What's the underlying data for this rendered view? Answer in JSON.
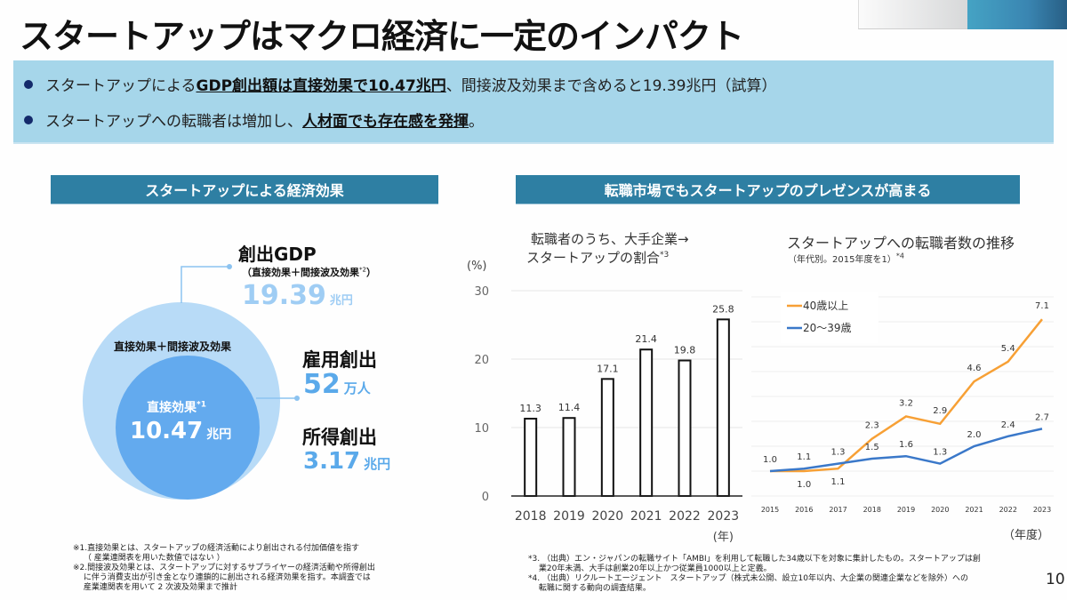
{
  "title": "スタートアップはマクロ経済に一定のインパクト",
  "summary": {
    "bullets": [
      {
        "pre": "スタートアップによる",
        "bold": "GDP創出額は直接効果で10.47兆円",
        "post": "、間接波及効果まで含めると19.39兆円（試算）"
      },
      {
        "pre": "スタートアップへの転職者は増加し、",
        "bold": "人材面でも存在感を発揮",
        "post": "。"
      }
    ]
  },
  "left_section": {
    "header": "スタートアップによる経済効果",
    "gdp": {
      "label": "創出GDP",
      "sublabel": "（直接効果＋間接波及効果",
      "sublabel_note": "*2",
      "sublabel_end": "）",
      "value": "19.39",
      "unit": "兆円"
    },
    "outer_circle_label": "直接効果＋間接波及効果",
    "inner_circle": {
      "label": "直接効果",
      "note": "*1",
      "value": "10.47",
      "unit": "兆円"
    },
    "employment": {
      "label": "雇用創出",
      "value": "52",
      "unit": "万人"
    },
    "income": {
      "label": "所得創出",
      "value": "3.17",
      "unit": "兆円"
    },
    "footnotes": [
      "※1.直接効果とは、スタートアップの経済活動により創出される付加価値を指す",
      "　 （ 産業連関表を用いた数値ではない ）",
      "※2.間接波及効果とは、スタートアップに対するサプライヤーの経済活動や所得創出",
      "　 に伴う消費支出が引き金となり連鎖的に創出される経済効果を指す。本調査では",
      "　 産業連関表を用いて 2 次波及効果まで推計"
    ]
  },
  "right_section": {
    "header": "転職市場でもスタートアップのプレゼンスが高まる",
    "footnotes": [
      "*3. （出典）エン・ジャパンの転職サイト「AMBI」を利用して転職した34歳以下を対象に集計したもの。スタートアップは創",
      "　 業20年未満、大手は創業20年以上かつ従業員1000以上と定義。",
      "*4. （出典）リクルートエージェント　スタートアップ（株式未公開、設立10年以内、大企業の関連企業などを除外）への",
      "　 転職に関する動向の調査結果。"
    ]
  },
  "page_number": "10",
  "colors": {
    "header_bg": "#2e7fa3",
    "info_bg": "#a6d6ea",
    "orange": "#f7a035",
    "blue": "#3a78c9",
    "outer_circle": "#b8dbf7",
    "inner_circle": "#63aaee"
  },
  "chart_data": [
    {
      "type": "bar",
      "title_line1": "転職者のうち、大手企業→",
      "title_line2": "スタートアップの割合",
      "title_note": "*3",
      "ylabel": "(%)",
      "xlabel": "(年)",
      "categories": [
        "2018",
        "2019",
        "2020",
        "2021",
        "2022",
        "2023"
      ],
      "values": [
        11.3,
        11.4,
        17.1,
        21.4,
        19.8,
        25.8
      ],
      "value_labels": [
        "11.3",
        "11.4",
        "17.1",
        "21.4",
        "19.8",
        "25.8"
      ],
      "ylim": [
        0,
        30
      ],
      "yticks": [
        "0",
        "10",
        "20",
        "30"
      ],
      "grid": true
    },
    {
      "type": "line",
      "title": "スタートアップへの転職者数の推移",
      "subtitle": "（年代別。2015年度を1）",
      "subtitle_note": "*4",
      "xlabel": "（年度）",
      "categories": [
        "2015",
        "2016",
        "2017",
        "2018",
        "2019",
        "2020",
        "2021",
        "2022",
        "2023"
      ],
      "ylim": [
        0,
        8
      ],
      "grid": true,
      "legend_position": "top-left",
      "series": [
        {
          "name": "40歳以上",
          "color": "#f7a035",
          "values": [
            1.0,
            1.0,
            1.1,
            2.3,
            3.2,
            2.9,
            4.6,
            5.4,
            7.1
          ],
          "labels": [
            "",
            "1.0",
            "1.1",
            "2.3",
            "3.2",
            "2.9",
            "4.6",
            "5.4",
            "7.1"
          ]
        },
        {
          "name": "20〜39歳",
          "color": "#3a78c9",
          "values": [
            1.0,
            1.1,
            1.3,
            1.5,
            1.6,
            1.3,
            2.0,
            2.4,
            2.7
          ],
          "labels": [
            "1.0",
            "1.1",
            "1.3",
            "1.5",
            "1.6",
            "1.3",
            "2.0",
            "2.4",
            "2.7"
          ]
        }
      ]
    }
  ]
}
